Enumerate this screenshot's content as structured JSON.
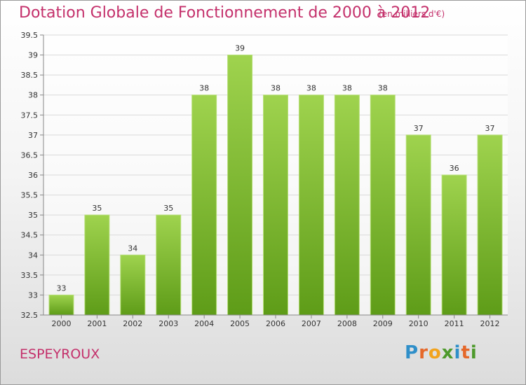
{
  "chart_data": {
    "type": "bar",
    "title": "Dotation Globale de Fonctionnement de 2000 à 2012",
    "subtitle": "(en milliers d'€)",
    "categories": [
      "2000",
      "2001",
      "2002",
      "2003",
      "2004",
      "2005",
      "2006",
      "2007",
      "2008",
      "2009",
      "2010",
      "2011",
      "2012"
    ],
    "values": [
      33,
      35,
      34,
      35,
      38,
      39,
      38,
      38,
      38,
      38,
      37,
      36,
      37
    ],
    "value_labels": [
      "33",
      "35",
      "34",
      "35",
      "38",
      "39",
      "38",
      "38",
      "38",
      "38",
      "37",
      "36",
      "37"
    ],
    "ylim": [
      32.5,
      39.5
    ],
    "yticks": [
      32.5,
      33,
      33.5,
      34,
      34.5,
      35,
      35.5,
      36,
      36.5,
      37,
      37.5,
      38,
      38.5,
      39,
      39.5
    ],
    "ytick_labels": [
      "32.5",
      "33",
      "33.5",
      "34",
      "34.5",
      "35",
      "35.5",
      "36",
      "36.5",
      "37",
      "37.5",
      "38",
      "38.5",
      "39",
      "39.5"
    ],
    "xlabel": "",
    "ylabel": "",
    "grid": true,
    "bar_color": "#7cc02b"
  },
  "footer": {
    "commune": "ESPEYROUX",
    "logo_text": "Proxiti"
  },
  "colors": {
    "title": "#c4306b",
    "grid": "#d9d9d9"
  }
}
